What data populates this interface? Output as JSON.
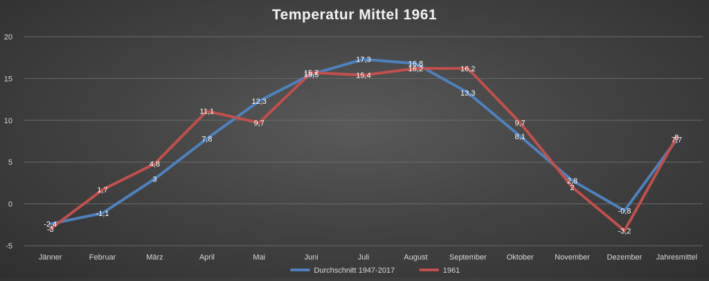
{
  "chart_data": {
    "type": "line",
    "title": "Temperatur Mittel 1961",
    "xlabel": "",
    "ylabel": "",
    "ylim": [
      -5,
      20
    ],
    "yticks": [
      -5,
      0,
      5,
      10,
      15,
      20
    ],
    "grid": true,
    "legend": "bottom",
    "categories": [
      "Jänner",
      "Februar",
      "März",
      "April",
      "Mai",
      "Juni",
      "Juli",
      "August",
      "September",
      "Oktober",
      "November",
      "Dezember",
      "Jahresmittel"
    ],
    "series": [
      {
        "name": "Durchschnitt 1947-2017",
        "color": "#4f81bd",
        "values": [
          -2.4,
          -1.1,
          3,
          7.8,
          12.3,
          15.5,
          17.3,
          16.8,
          13.3,
          8.1,
          2.8,
          -0.8,
          7.7
        ],
        "labels": [
          "-2,4",
          "-1,1",
          "3",
          "7,8",
          "12,3",
          "15,5",
          "17,3",
          "16,8",
          "13,3",
          "8,1",
          "2,8",
          "-0,8",
          "7,7"
        ]
      },
      {
        "name": "1961",
        "color": "#c0504d",
        "values": [
          -3,
          1.7,
          4.8,
          11.1,
          9.7,
          15.7,
          15.4,
          16.2,
          16.2,
          9.7,
          2,
          -3.2,
          8
        ],
        "labels": [
          "-3",
          "1,7",
          "4,8",
          "11,1",
          "9,7",
          "15,7",
          "15,4",
          "16,2",
          "16,2",
          "9,7",
          "2",
          "-3,2",
          "8"
        ]
      }
    ]
  }
}
